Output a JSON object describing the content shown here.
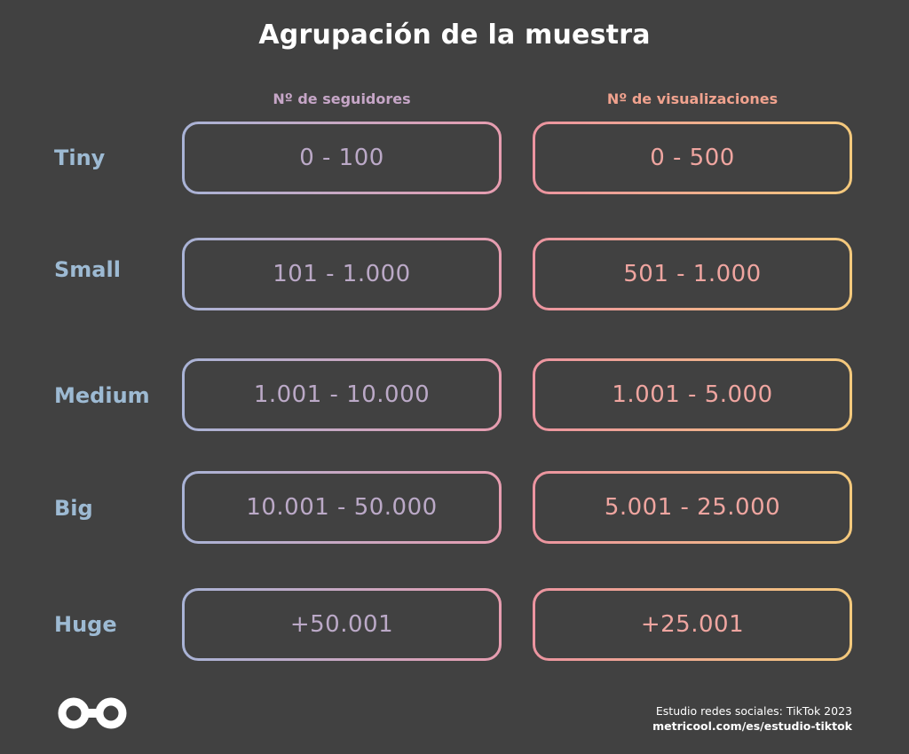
{
  "title": "Agrupación de la muestra",
  "columns": {
    "followers": "Nº de seguidores",
    "views": "Nº de visualizaciones"
  },
  "rows": [
    {
      "label": "Tiny",
      "followers": "0 - 100",
      "views": "0 - 500"
    },
    {
      "label": "Small",
      "followers": "101 - 1.000",
      "views": "501 - 1.000"
    },
    {
      "label": "Medium",
      "followers": "1.001 - 10.000",
      "views": "1.001 - 5.000"
    },
    {
      "label": "Big",
      "followers": "10.001 - 50.000",
      "views": "5.001 - 25.000"
    },
    {
      "label": "Huge",
      "followers": "+50.001",
      "views": "+25.001"
    }
  ],
  "footer": {
    "source": "Estudio redes sociales: TikTok 2023",
    "url": "metricool.com/es/estudio-tiktok"
  },
  "logo_icon": "metricool-infinity-logo-icon",
  "colors": {
    "background": "#414141",
    "label": "#9dbad3",
    "followers_gradient": [
      "#a9b3d6",
      "#e79db0"
    ],
    "views_gradient": [
      "#ec94a0",
      "#f4c97c"
    ],
    "followers_header": "#c6a6c7",
    "views_header": "#f0a28e"
  }
}
